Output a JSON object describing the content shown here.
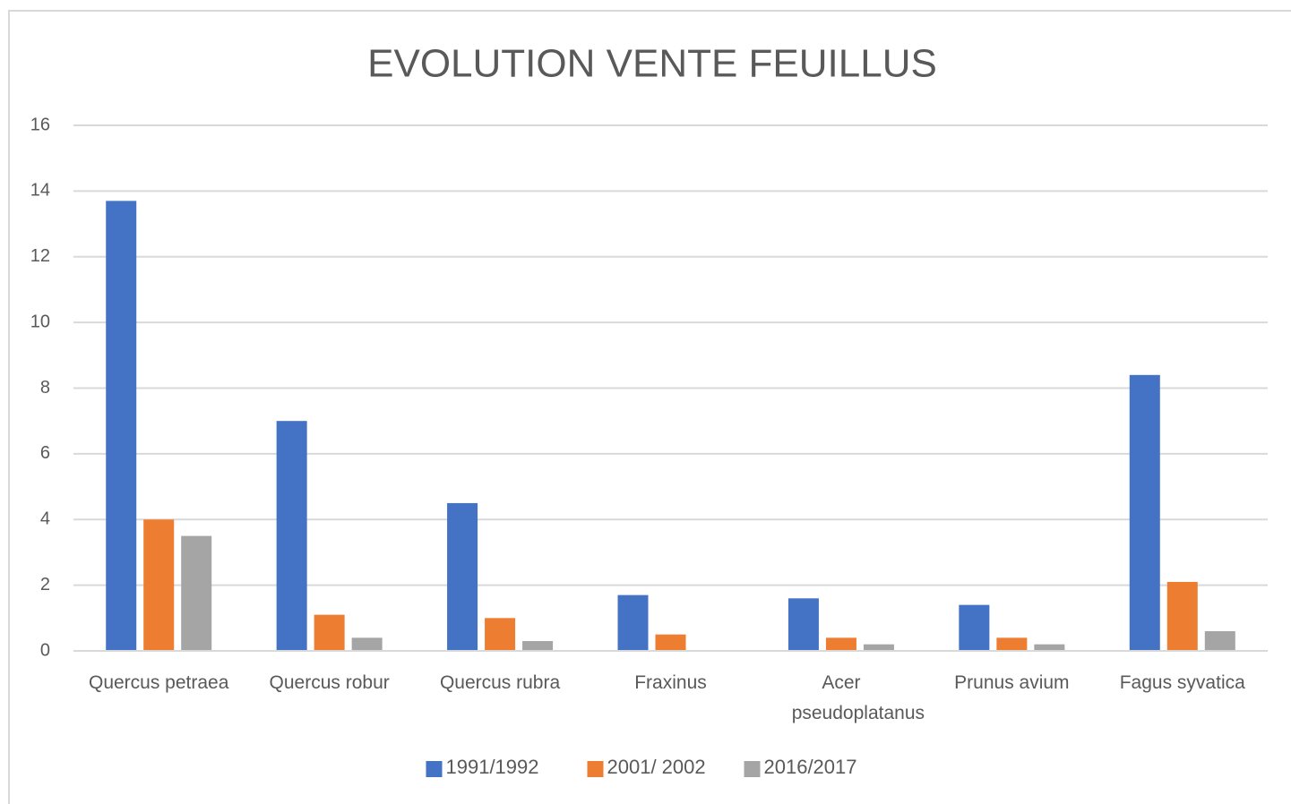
{
  "chart_data": {
    "type": "bar",
    "title": "EVOLUTION VENTE FEUILLUS",
    "categories": [
      "Quercus petraea",
      "Quercus robur",
      "Quercus rubra",
      "Fraxinus",
      "Acer pseudoplatanus",
      "Prunus avium",
      "Fagus syvatica"
    ],
    "series": [
      {
        "name": "1991/1992",
        "color": "#4472c4",
        "values": [
          13.7,
          7,
          4.5,
          1.7,
          1.6,
          1.4,
          8.4
        ]
      },
      {
        "name": "2001/ 2002",
        "color": "#ed7d31",
        "values": [
          4,
          1.1,
          1,
          0.5,
          0.4,
          0.4,
          2.1
        ]
      },
      {
        "name": "2016/2017",
        "color": "#a5a5a5",
        "values": [
          3.5,
          0.4,
          0.3,
          0,
          0.2,
          0.2,
          0.6
        ]
      }
    ],
    "ylim": [
      0,
      16
    ],
    "yticks": [
      0,
      2,
      4,
      6,
      8,
      10,
      12,
      14,
      16
    ],
    "grid": true,
    "legend": "bottom"
  }
}
